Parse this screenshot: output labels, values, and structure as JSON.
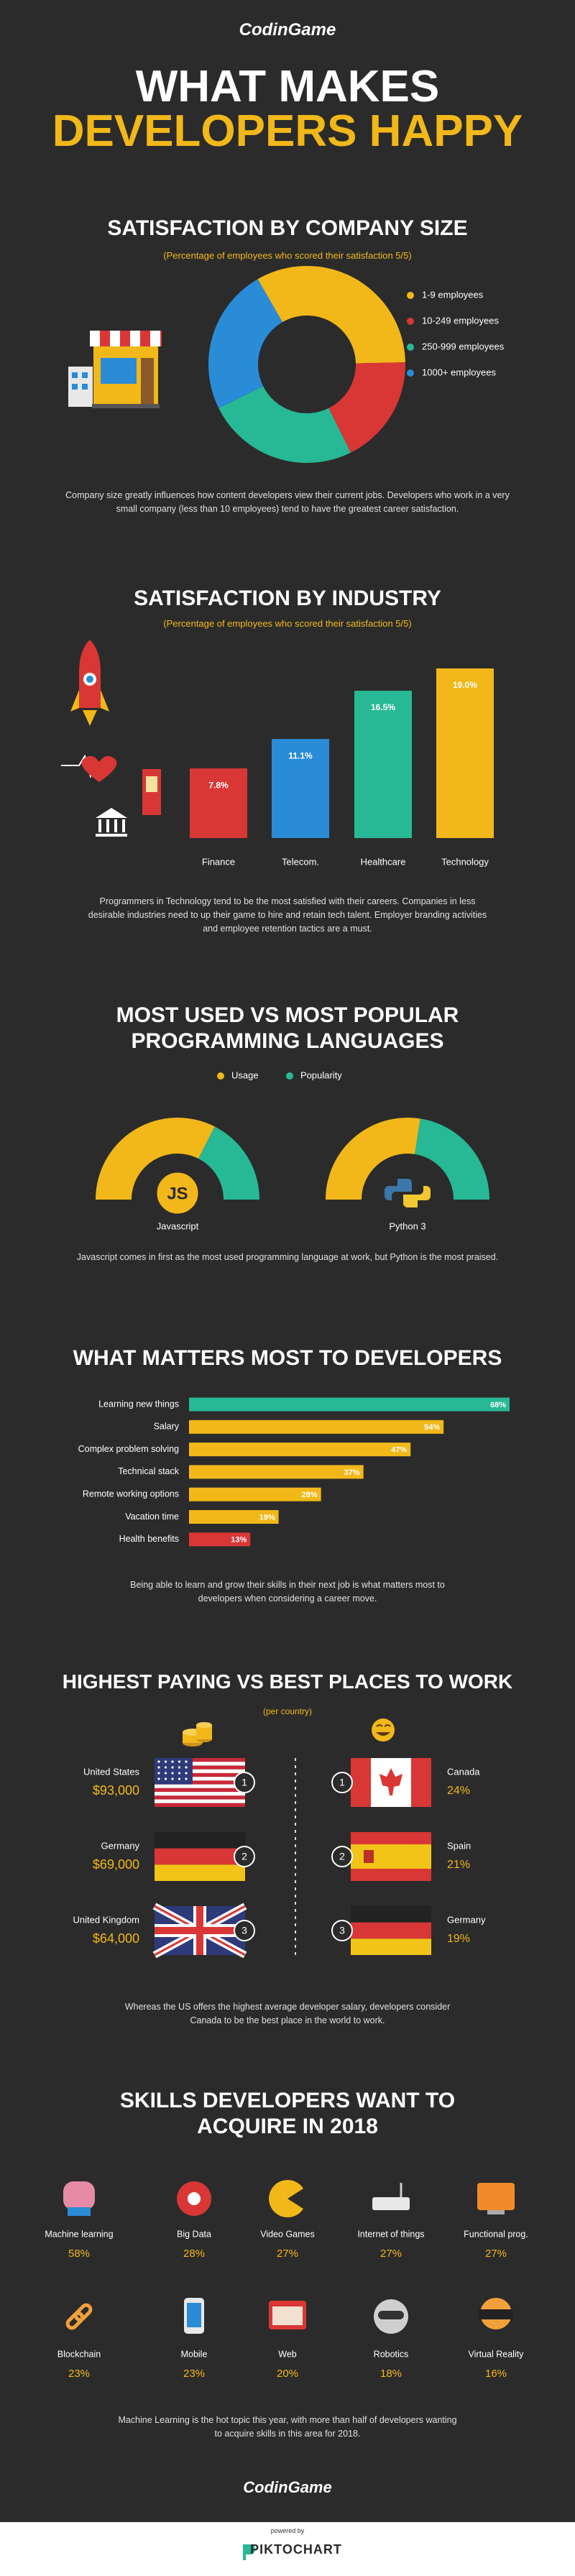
{
  "header": {
    "logo": "CodinGame",
    "title_line1": "WHAT MAKES",
    "title_line2": "DEVELOPERS HAPPY"
  },
  "chart_data": [
    {
      "type": "pie",
      "donut": true,
      "title": "SATISFACTION BY COMPANY SIZE",
      "subtitle": "(Percentage of employees who scored their satisfaction 5/5)",
      "categories": [
        "1-9 employees",
        "10-249 employees",
        "250-999 employees",
        "1000+ employees"
      ],
      "values": [
        33,
        18,
        25,
        24
      ],
      "colors": [
        "#f2b81a",
        "#d93636",
        "#27b995",
        "#2a8bd6"
      ],
      "legend": "right",
      "caption": "Company size greatly influences how content developers view their current jobs. Developers who work in a very small company (less than 10 employees) tend to have the greatest career satisfaction."
    },
    {
      "type": "bar",
      "title": "SATISFACTION BY INDUSTRY",
      "subtitle": "(Percentage of employees who scored their satisfaction 5/5)",
      "categories": [
        "Finance",
        "Telecom.",
        "Healthcare",
        "Technology"
      ],
      "values": [
        7.8,
        11.1,
        16.5,
        19.0
      ],
      "value_labels": [
        "7.8%",
        "11.1%",
        "16.5%",
        "19.0%"
      ],
      "colors": [
        "#d93636",
        "#2a8bd6",
        "#27b995",
        "#f2b81a"
      ],
      "caption": "Programmers in Technology tend to be the most satisfied with their careers. Companies in less desirable industries need to up their game to hire and retain tech talent. Employer branding activities and employee retention tactics are a must."
    },
    {
      "type": "gauge",
      "title": "MOST USED VS MOST POPULAR PROGRAMMING LANGUAGES",
      "categories": [
        "Javascript",
        "Python 3"
      ],
      "series": [
        {
          "name": "Usage",
          "color": "#f2b81a",
          "values": [
            65,
            55
          ]
        },
        {
          "name": "Popularity",
          "color": "#27b995",
          "values": [
            35,
            45
          ]
        }
      ],
      "legend": "top",
      "caption": "Javascript comes in first as the most used programming language at work, but Python is the most praised."
    },
    {
      "type": "bar",
      "orientation": "horizontal",
      "title": "WHAT MATTERS MOST TO DEVELOPERS",
      "categories": [
        "Learning new things",
        "Salary",
        "Complex problem solving",
        "Technical stack",
        "Remote working options",
        "Vacation time",
        "Health benefits"
      ],
      "values": [
        68,
        54,
        47,
        37,
        28,
        19,
        13
      ],
      "value_labels": [
        "68%",
        "54%",
        "47%",
        "37%",
        "28%",
        "19%",
        "13%"
      ],
      "colors": [
        "#27b995",
        "#f2b81a",
        "#f2b81a",
        "#f2b81a",
        "#f2b81a",
        "#f2b81a",
        "#d93636"
      ],
      "caption": "Being able to learn and grow their skills in their next job is what matters most to developers when considering a career move."
    }
  ],
  "icons": {
    "javascript": "JS"
  },
  "places": {
    "title": "HIGHEST PAYING VS BEST PLACES TO WORK",
    "subtitle": "(per country)",
    "salary": [
      {
        "country": "United States",
        "amount": "$93,000",
        "rank": "1"
      },
      {
        "country": "Germany",
        "amount": "$69,000",
        "rank": "2"
      },
      {
        "country": "United Kingdom",
        "amount": "$64,000",
        "rank": "3"
      }
    ],
    "best": [
      {
        "country": "Canada",
        "share": "24%",
        "rank": "1"
      },
      {
        "country": "Spain",
        "share": "21%",
        "rank": "2"
      },
      {
        "country": "Germany",
        "share": "19%",
        "rank": "3"
      }
    ],
    "caption": "Whereas the US offers the highest average developer salary, developers consider Canada to be the best place in the world to work."
  },
  "skills": {
    "title": "SKILLS DEVELOPERS WANT TO ACQUIRE IN 2018",
    "items": [
      {
        "name": "Machine learning",
        "share": "58%"
      },
      {
        "name": "Big Data",
        "share": "28%"
      },
      {
        "name": "Video Games",
        "share": "27%"
      },
      {
        "name": "Internet of things",
        "share": "27%"
      },
      {
        "name": "Functional prog.",
        "share": "27%"
      },
      {
        "name": "Blockchain",
        "share": "23%"
      },
      {
        "name": "Mobile",
        "share": "23%"
      },
      {
        "name": "Web",
        "share": "20%"
      },
      {
        "name": "Robotics",
        "share": "18%"
      },
      {
        "name": "Virtual Reality",
        "share": "16%"
      }
    ],
    "caption": "Machine Learning is the hot topic this year, with more than half of developers wanting to acquire skills in this area for 2018."
  },
  "footer": {
    "logo": "CodinGame",
    "powered_by": "powered by",
    "brand": "PIKTOCHART"
  }
}
